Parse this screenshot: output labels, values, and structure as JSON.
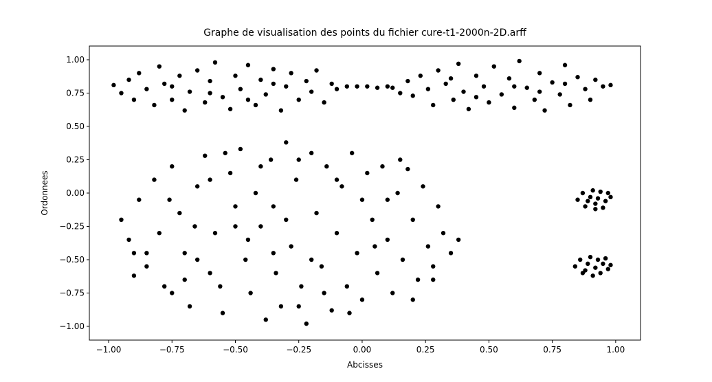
{
  "chart_data": {
    "type": "scatter",
    "title": "Graphe de visualisation des points du fichier cure-t1-2000n-2D.arff",
    "x_label": "Abcisses",
    "y_label": "Ordonnees",
    "color": "#000000",
    "xlim": [
      -1.076,
      1.098
    ],
    "ylim": [
      -1.103,
      1.103
    ],
    "xticks": [
      {
        "value": -1,
        "label": "−1.00"
      },
      {
        "value": -0.75,
        "label": "−0.75"
      },
      {
        "value": -0.5,
        "label": "−0.50"
      },
      {
        "value": -0.25,
        "label": "−0.25"
      },
      {
        "value": 0,
        "label": "0.00"
      },
      {
        "value": 0.25,
        "label": "0.25"
      },
      {
        "value": 0.5,
        "label": "0.50"
      },
      {
        "value": 0.75,
        "label": "0.75"
      },
      {
        "value": 1,
        "label": "1.00"
      }
    ],
    "yticks": [
      {
        "value": -1,
        "label": "−1.00"
      },
      {
        "value": -0.75,
        "label": "−0.75"
      },
      {
        "value": -0.5,
        "label": "−0.50"
      },
      {
        "value": -0.25,
        "label": "−0.25"
      },
      {
        "value": 0,
        "label": "0.00"
      },
      {
        "value": 0.25,
        "label": "0.25"
      },
      {
        "value": 0.5,
        "label": "0.50"
      },
      {
        "value": 0.75,
        "label": "0.75"
      },
      {
        "value": 1,
        "label": "1.00"
      }
    ],
    "grid": false,
    "x": [
      -0.95,
      -0.92,
      -0.88,
      -0.85,
      -0.9,
      -0.82,
      -0.8,
      -0.78,
      -0.75,
      -0.72,
      -0.7,
      -0.68,
      -0.65,
      -0.62,
      -0.6,
      -0.58,
      -0.55,
      -0.52,
      -0.5,
      -0.48,
      -0.46,
      -0.44,
      -0.42,
      -0.4,
      -0.38,
      -0.36,
      -0.34,
      -0.32,
      -0.3,
      -0.28,
      -0.26,
      -0.24,
      -0.22,
      -0.2,
      -0.18,
      -0.16,
      -0.14,
      -0.12,
      -0.1,
      -0.08,
      -0.06,
      -0.04,
      -0.02,
      0,
      0.02,
      0.04,
      0.06,
      0.08,
      0.1,
      0.12,
      0.14,
      0.16,
      0.18,
      0.2,
      0.22,
      0.24,
      0.26,
      0.28,
      0.3,
      0.32,
      0.35,
      0.38,
      -0.85,
      -0.76,
      -0.66,
      -0.56,
      -0.54,
      -0.4,
      -0.3,
      -0.2,
      -0.1,
      0,
      0.1,
      -0.45,
      -0.35,
      -0.25,
      -0.15,
      -0.05,
      0.05,
      0.2,
      0.15,
      -0.6,
      -0.7,
      -0.9,
      -0.75,
      0.28,
      -0.5,
      -0.65,
      -0.35,
      -0.25,
      -0.98,
      -0.95,
      -0.92,
      -0.9,
      -0.88,
      -0.85,
      -0.82,
      -0.8,
      -0.78,
      -0.75,
      -0.72,
      -0.7,
      -0.68,
      -0.65,
      -0.62,
      -0.6,
      -0.58,
      -0.55,
      -0.52,
      -0.5,
      -0.48,
      -0.45,
      -0.42,
      -0.4,
      -0.38,
      -0.35,
      -0.32,
      -0.3,
      -0.28,
      -0.25,
      -0.22,
      -0.2,
      -0.18,
      -0.15,
      -0.12,
      -0.1,
      -0.6,
      -0.45,
      -0.35,
      -0.75,
      -0.06,
      -0.02,
      0.02,
      0.06,
      0.1,
      0.12,
      0.15,
      0.18,
      0.2,
      0.23,
      0.26,
      0.28,
      0.3,
      0.33,
      0.36,
      0.38,
      0.4,
      0.42,
      0.45,
      0.48,
      0.5,
      0.52,
      0.55,
      0.58,
      0.6,
      0.62,
      0.65,
      0.68,
      0.7,
      0.72,
      0.75,
      0.78,
      0.8,
      0.82,
      0.85,
      0.88,
      0.9,
      0.92,
      0.95,
      0.98,
      0.6,
      0.45,
      0.8,
      0.7,
      0.35,
      0.85,
      0.87,
      0.88,
      0.9,
      0.91,
      0.92,
      0.93,
      0.94,
      0.95,
      0.96,
      0.98,
      0.89,
      0.97,
      0.92,
      0.84,
      0.86,
      0.87,
      0.89,
      0.9,
      0.91,
      0.92,
      0.93,
      0.94,
      0.95,
      0.97,
      0.98,
      0.88,
      0.96
    ],
    "values": [
      -0.2,
      -0.35,
      -0.05,
      -0.55,
      -0.62,
      0.1,
      -0.3,
      -0.7,
      0.2,
      -0.15,
      -0.45,
      -0.85,
      0.05,
      0.28,
      -0.6,
      -0.3,
      -0.9,
      0.15,
      -0.1,
      0.33,
      -0.5,
      -0.75,
      0,
      -0.25,
      -0.95,
      0.25,
      -0.6,
      -0.85,
      0.38,
      -0.4,
      0.1,
      -0.7,
      -0.98,
      0.3,
      -0.15,
      -0.55,
      0.2,
      -0.88,
      -0.3,
      0.05,
      -0.7,
      0.3,
      -0.45,
      -0.8,
      0.15,
      -0.2,
      -0.6,
      0.2,
      -0.35,
      -0.75,
      0,
      -0.5,
      0.18,
      -0.2,
      -0.65,
      0.05,
      -0.4,
      -0.55,
      -0.1,
      -0.3,
      -0.45,
      -0.35,
      -0.45,
      -0.05,
      -0.25,
      -0.7,
      0.3,
      0.2,
      -0.2,
      -0.5,
      0.1,
      -0.05,
      -0.05,
      -0.35,
      -0.1,
      -0.85,
      -0.75,
      -0.9,
      -0.4,
      -0.8,
      0.25,
      0.1,
      -0.65,
      -0.45,
      -0.75,
      -0.65,
      -0.25,
      -0.5,
      -0.45,
      0.25,
      0.81,
      0.75,
      0.85,
      0.7,
      0.9,
      0.78,
      0.66,
      0.95,
      0.82,
      0.7,
      0.88,
      0.62,
      0.76,
      0.92,
      0.68,
      0.84,
      0.98,
      0.72,
      0.63,
      0.88,
      0.78,
      0.96,
      0.66,
      0.85,
      0.74,
      0.93,
      0.62,
      0.8,
      0.9,
      0.7,
      0.84,
      0.76,
      0.92,
      0.68,
      0.82,
      0.78,
      0.75,
      0.7,
      0.82,
      0.8,
      0.8,
      0.8,
      0.8,
      0.79,
      0.8,
      0.79,
      0.75,
      0.84,
      0.73,
      0.88,
      0.78,
      0.66,
      0.92,
      0.82,
      0.7,
      0.97,
      0.76,
      0.63,
      0.88,
      0.8,
      0.68,
      0.95,
      0.74,
      0.86,
      0.64,
      0.99,
      0.79,
      0.7,
      0.9,
      0.62,
      0.83,
      0.74,
      0.96,
      0.66,
      0.87,
      0.78,
      0.7,
      0.85,
      0.8,
      0.81,
      0.8,
      0.72,
      0.82,
      0.76,
      0.86,
      -0.05,
      0,
      -0.1,
      -0.03,
      0.02,
      -0.08,
      -0.04,
      0.01,
      -0.11,
      -0.06,
      -0.03,
      -0.06,
      0,
      -0.12,
      -0.55,
      -0.5,
      -0.6,
      -0.53,
      -0.48,
      -0.62,
      -0.56,
      -0.5,
      -0.6,
      -0.53,
      -0.57,
      -0.54,
      -0.58,
      -0.49
    ]
  }
}
